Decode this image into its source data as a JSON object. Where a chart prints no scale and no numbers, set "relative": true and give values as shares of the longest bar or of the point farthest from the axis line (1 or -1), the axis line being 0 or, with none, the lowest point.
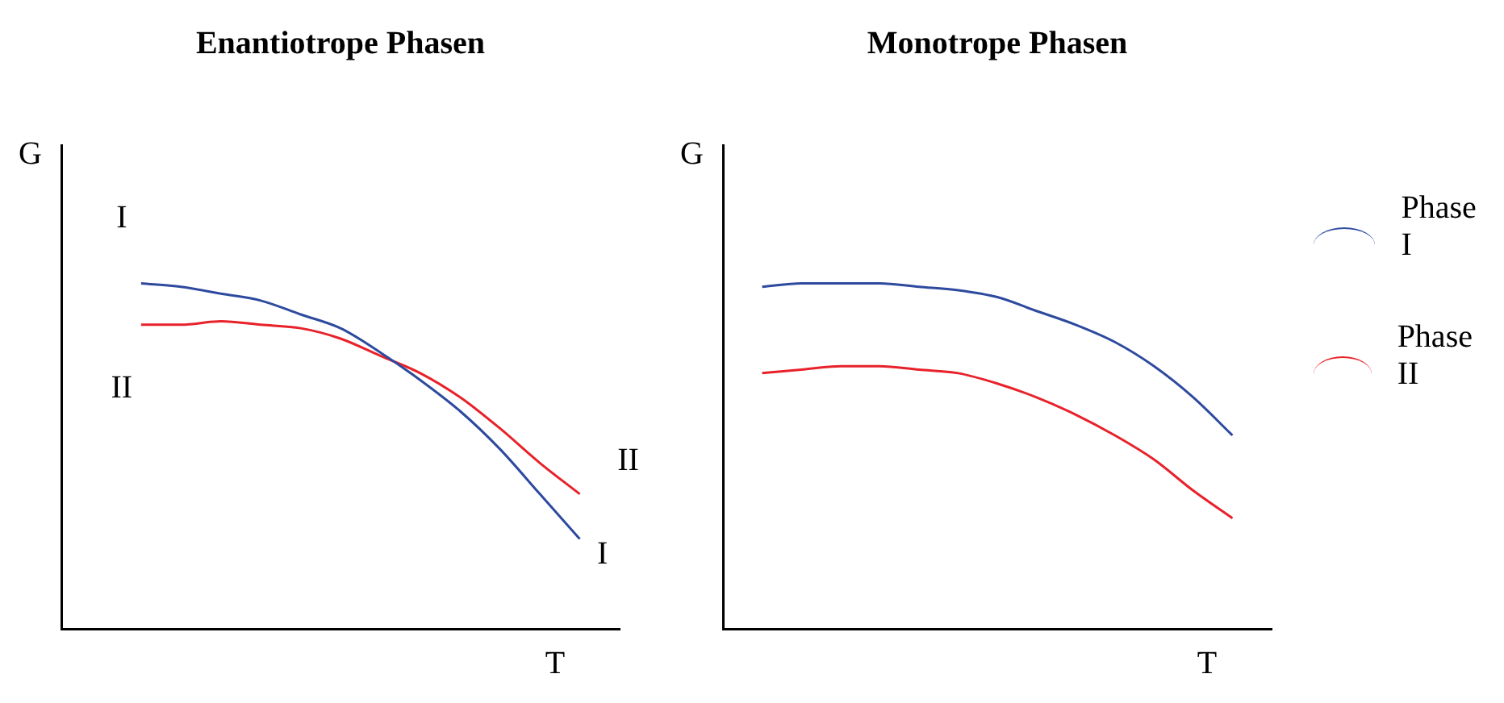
{
  "chart_data": [
    {
      "type": "line",
      "title": "Enantiotrope Phasen",
      "xlabel": "T",
      "ylabel": "G",
      "relative": true,
      "legend": false,
      "marker": "none",
      "grid": false,
      "categories": [
        null,
        null,
        null,
        null,
        null,
        null,
        null,
        null,
        null,
        null,
        null,
        null,
        null,
        null,
        null
      ],
      "series": [
        {
          "name": "I",
          "color": "#2e4a9e",
          "values": [
            null,
            null,
            1,
            0.99,
            0.97,
            0.95,
            0.91,
            0.87,
            0.8,
            0.72,
            0.63,
            0.52,
            0.39,
            0.26,
            null
          ]
        },
        {
          "name": "II",
          "color": "#e8212a",
          "values": [
            null,
            null,
            0.88,
            0.88,
            0.89,
            0.88,
            0.87,
            0.84,
            0.79,
            0.74,
            0.67,
            0.58,
            0.48,
            0.39,
            null
          ]
        }
      ]
    },
    {
      "type": "line",
      "title": "Monotrope Phasen",
      "xlabel": "T",
      "ylabel": "G",
      "relative": true,
      "legend": "right",
      "marker": "none",
      "grid": false,
      "categories": [
        null,
        null,
        null,
        null,
        null,
        null,
        null,
        null,
        null,
        null,
        null,
        null,
        null,
        null,
        null
      ],
      "series": [
        {
          "name": "Phase I",
          "color": "#2e4a9e",
          "values": [
            null,
            0.99,
            1,
            1,
            1,
            0.99,
            0.98,
            0.96,
            0.92,
            0.88,
            0.83,
            0.76,
            0.67,
            0.56,
            null
          ]
        },
        {
          "name": "Phase II",
          "color": "#e8212a",
          "values": [
            null,
            0.74,
            0.75,
            0.76,
            0.76,
            0.75,
            0.74,
            0.71,
            0.67,
            0.62,
            0.56,
            0.49,
            0.4,
            0.32,
            null
          ]
        }
      ]
    }
  ]
}
